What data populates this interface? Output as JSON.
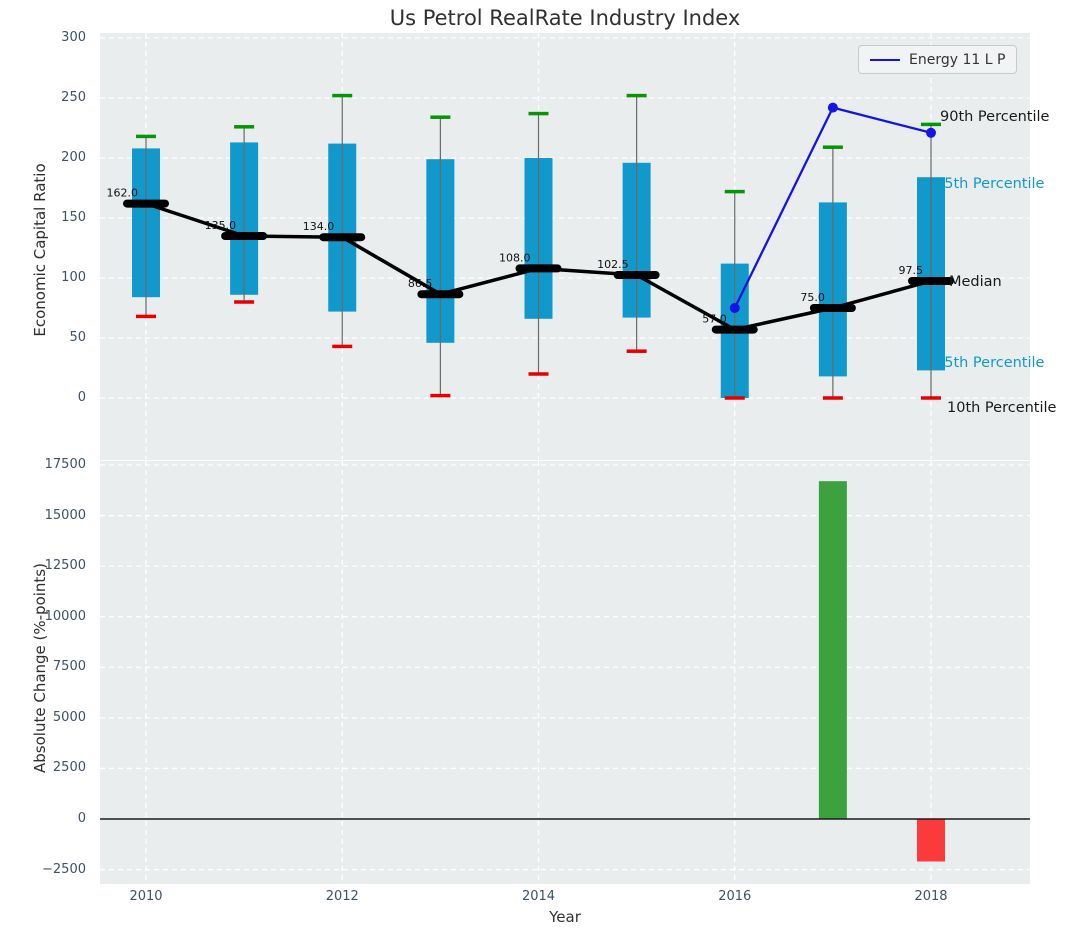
{
  "title": "Us Petrol RealRate Industry Index",
  "legend": {
    "label": "Energy 11 L P"
  },
  "axes": {
    "xlabel": "Year",
    "xticks": [
      {
        "v": 2010,
        "label": "2010"
      },
      {
        "v": 2012,
        "label": "2012"
      },
      {
        "v": 2014,
        "label": "2014"
      },
      {
        "v": 2016,
        "label": "2016"
      },
      {
        "v": 2018,
        "label": "2018"
      }
    ],
    "top": {
      "ylabel": "Economic Capital Ratio",
      "yticks": [
        {
          "v": 300,
          "label": "300"
        },
        {
          "v": 250,
          "label": "250"
        },
        {
          "v": 200,
          "label": "200"
        },
        {
          "v": 150,
          "label": "150"
        },
        {
          "v": 100,
          "label": "100"
        },
        {
          "v": 50,
          "label": "50"
        },
        {
          "v": 0,
          "label": "0"
        }
      ]
    },
    "bottom": {
      "ylabel": "Absolute Change (%-points)",
      "yticks": [
        {
          "v": 17500,
          "label": "17500"
        },
        {
          "v": 15000,
          "label": "15000"
        },
        {
          "v": 12500,
          "label": "12500"
        },
        {
          "v": 10000,
          "label": "10000"
        },
        {
          "v": 7500,
          "label": "7500"
        },
        {
          "v": 5000,
          "label": "5000"
        },
        {
          "v": 2500,
          "label": "2500"
        },
        {
          "v": 0,
          "label": "0"
        },
        {
          "v": -2500,
          "label": "−2500"
        }
      ]
    }
  },
  "annotations": [
    {
      "text": "90th Percentile",
      "style": "black"
    },
    {
      "text": "75th Percentile",
      "style": "cyan"
    },
    {
      "text": "Median",
      "style": "black"
    },
    {
      "text": "25th Percentile",
      "style": "cyan"
    },
    {
      "text": "10th Percentile",
      "style": "black"
    }
  ],
  "colors": {
    "box_fill": "#1199cc",
    "cap_high": "#089408",
    "cap_low": "#e80000",
    "whisker_line": "#6a6a6a",
    "median_marker": "#000000",
    "median_line": "#000000",
    "energy_line": "#1414e6",
    "bar_positive": "#3da23d",
    "bar_negative": "#fb3b3b",
    "panel_bg": "#e9edee",
    "grid": "#ffffff",
    "tick_label": "#3f5266",
    "annotation_cyan": "#1199cc",
    "annotation_black": "#1a1a1a",
    "zero_line": "#1a1a1a"
  },
  "chart_data": [
    {
      "type": "boxplot",
      "title": "Us Petrol RealRate Industry Index",
      "xlabel": "Year",
      "ylabel": "Economic Capital Ratio",
      "ylim": [
        -52,
        304
      ],
      "xlim": [
        2009.5,
        2019.0
      ],
      "grid": true,
      "legend_position": "upper right",
      "categories": [
        2010,
        2011,
        2012,
        2013,
        2014,
        2015,
        2016,
        2017,
        2018
      ],
      "median": [
        162.0,
        135.0,
        134.0,
        86.5,
        108.0,
        102.5,
        57.0,
        75.0,
        97.5
      ],
      "median_labels": [
        "162.0",
        "135.0",
        "134.0",
        "86.5",
        "108.0",
        "102.5",
        "57.0",
        "75.0",
        "97.5"
      ],
      "q1": [
        84,
        86,
        72,
        46,
        66,
        67,
        0,
        18,
        23
      ],
      "q3": [
        208,
        213,
        212,
        199,
        200,
        196,
        112,
        163,
        184
      ],
      "whisker_low": [
        68,
        80,
        43,
        2,
        20,
        39,
        0,
        0,
        0
      ],
      "whisker_high": [
        218,
        226,
        252,
        234,
        237,
        252,
        172,
        209,
        228
      ],
      "series": [
        {
          "name": "Energy 11 L P",
          "type": "line",
          "x": [
            2016,
            2017,
            2018
          ],
          "y": [
            75,
            242,
            221
          ]
        }
      ]
    },
    {
      "type": "bar",
      "xlabel": "Year",
      "ylabel": "Absolute Change (%-points)",
      "ylim": [
        -3300,
        17700
      ],
      "grid": true,
      "x": [
        2017,
        2018
      ],
      "values": [
        16700,
        -2100
      ],
      "bar_colors": [
        "positive",
        "negative"
      ]
    }
  ]
}
